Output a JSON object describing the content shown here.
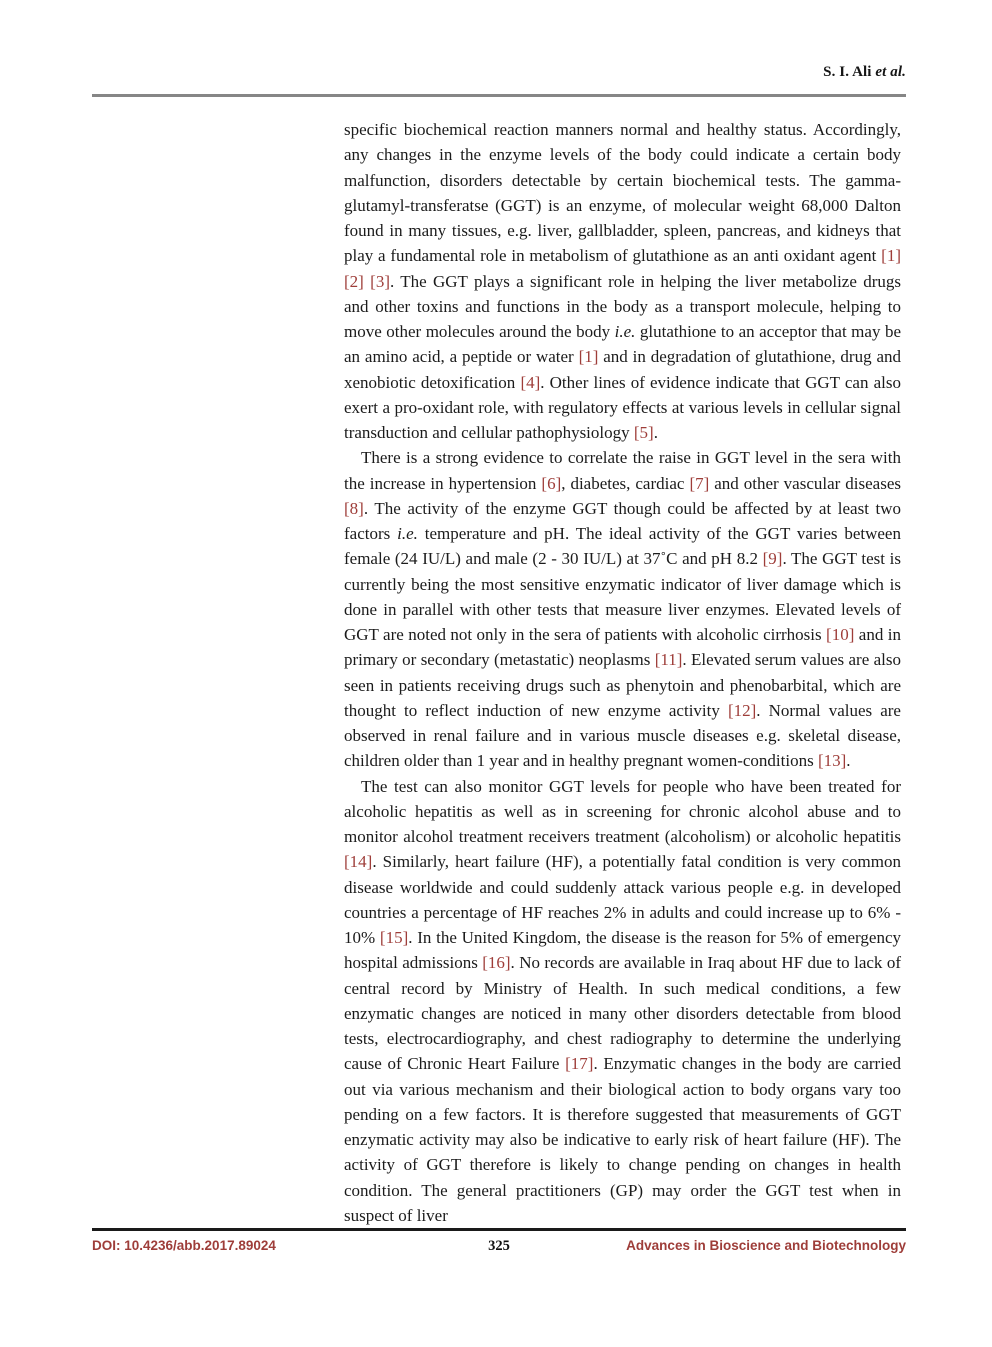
{
  "header": {
    "author_plain": "S. I. Ali ",
    "author_etal": "et al."
  },
  "footer": {
    "doi": "DOI: 10.4236/abb.2017.89024",
    "page_number": "325",
    "journal": "Advances in Bioscience and Biotechnology"
  },
  "colors": {
    "citation_red": "#9e3d39",
    "footer_accent_red": "#9e3d39",
    "header_rule_gray": "#868686",
    "footer_rule_black": "#1a1a1a",
    "body_text": "#1b1b1b",
    "page_background": "#ffffff"
  },
  "body": {
    "paragraphs": [
      {
        "indent": false,
        "segments": [
          {
            "s": "n",
            "t": "specific biochemical reaction manners normal and healthy status. Accordingly, any changes in the enzyme levels of the body could indicate a certain body malfunction, disorders detectable by certain biochemical tests. The gamma-glutamyl-transferatse (GGT) is an enzyme, of molecular weight 68,000 Dalton found in many tissues, e.g. liver, gallbladder, spleen, pancreas, and kidneys that play a fundamental role in metabolism of glutathione as an anti oxidant agent "
          },
          {
            "s": "c",
            "t": "[1]"
          },
          {
            "s": "n",
            "t": " "
          },
          {
            "s": "c",
            "t": "[2]"
          },
          {
            "s": "n",
            "t": " "
          },
          {
            "s": "c",
            "t": "[3]"
          },
          {
            "s": "n",
            "t": ". The GGT plays a significant role in helping the liver metabolize drugs and other toxins and functions in the body as a transport molecule, helping to move other molecules around the body "
          },
          {
            "s": "i",
            "t": "i.e."
          },
          {
            "s": "n",
            "t": " glutathione to an acceptor that may be an amino acid, a peptide or water "
          },
          {
            "s": "c",
            "t": "[1]"
          },
          {
            "s": "n",
            "t": " and in degradation of glutathione, drug and xenobiotic detoxification "
          },
          {
            "s": "c",
            "t": "[4]"
          },
          {
            "s": "n",
            "t": ". Other lines of evidence indicate that GGT can also exert a pro-oxidant role, with regulatory effects at various levels in cellular signal transduction and cellular pathophysiology "
          },
          {
            "s": "c",
            "t": "[5]"
          },
          {
            "s": "n",
            "t": "."
          }
        ]
      },
      {
        "indent": true,
        "segments": [
          {
            "s": "n",
            "t": "There is a strong evidence to correlate the raise in GGT level in the sera with the increase in hypertension "
          },
          {
            "s": "c",
            "t": "[6]"
          },
          {
            "s": "n",
            "t": ", diabetes, cardiac "
          },
          {
            "s": "c",
            "t": "[7]"
          },
          {
            "s": "n",
            "t": " and other vascular diseases "
          },
          {
            "s": "c",
            "t": "[8]"
          },
          {
            "s": "n",
            "t": ". The activity of the enzyme GGT though could be affected by at least two factors "
          },
          {
            "s": "i",
            "t": "i.e."
          },
          {
            "s": "n",
            "t": " temperature and pH. The ideal activity of the GGT varies between female (24 IU/L) and male (2 - 30 IU/L) at 37˚C and pH 8.2 "
          },
          {
            "s": "c",
            "t": "[9]"
          },
          {
            "s": "n",
            "t": ". The GGT test is currently being the most sensitive enzymatic indicator of liver damage which is done in parallel with other tests that measure liver enzymes. Elevated levels of GGT are noted not only in the sera of patients with alcoholic cirrhosis "
          },
          {
            "s": "c",
            "t": "[10]"
          },
          {
            "s": "n",
            "t": " and in primary or secondary (metastatic) neoplasms "
          },
          {
            "s": "c",
            "t": "[11]"
          },
          {
            "s": "n",
            "t": ". Elevated serum values are also seen in patients receiving drugs such as phenytoin and phenobarbital, which are thought to reflect induction of new enzyme activity "
          },
          {
            "s": "c",
            "t": "[12]"
          },
          {
            "s": "n",
            "t": ". Normal values are observed in renal failure and in various muscle diseases e.g. skeletal disease, children older than 1 year and in healthy pregnant women-conditions "
          },
          {
            "s": "c",
            "t": "[13]"
          },
          {
            "s": "n",
            "t": "."
          }
        ]
      },
      {
        "indent": true,
        "segments": [
          {
            "s": "n",
            "t": "The test can also monitor GGT levels for people who have been treated for alcoholic hepatitis as well as in screening for chronic alcohol abuse and to monitor alcohol treatment receivers treatment (alcoholism) or alcoholic hepatitis "
          },
          {
            "s": "c",
            "t": "[14]"
          },
          {
            "s": "n",
            "t": ". Similarly, heart failure (HF), a potentially fatal condition is very common disease worldwide and could suddenly attack various people e.g. in developed countries a percentage of HF reaches 2% in adults and could increase up to 6% - 10% "
          },
          {
            "s": "c",
            "t": "[15]"
          },
          {
            "s": "n",
            "t": ". In the United Kingdom, the disease is the reason for 5% of emergency hospital admissions "
          },
          {
            "s": "c",
            "t": "[16]"
          },
          {
            "s": "n",
            "t": ". No records are available in Iraq about HF due to lack of central record by Ministry of Health. In such medical conditions, a few enzymatic changes are noticed in many other disorders detectable from blood tests, electrocardiography, and chest radiography to determine the underlying cause of Chronic Heart Failure "
          },
          {
            "s": "c",
            "t": "[17]"
          },
          {
            "s": "n",
            "t": ". Enzymatic changes in the body are carried out via various mechanism and their biological action to body organs vary too pending on a few factors. It is therefore suggested that measurements of GGT enzymatic activity may also be indicative to early risk of heart failure (HF). The activity of GGT therefore is likely to change pending on changes in health condition. The general practitioners (GP) may order the GGT test when in suspect of liver"
          }
        ]
      }
    ]
  }
}
